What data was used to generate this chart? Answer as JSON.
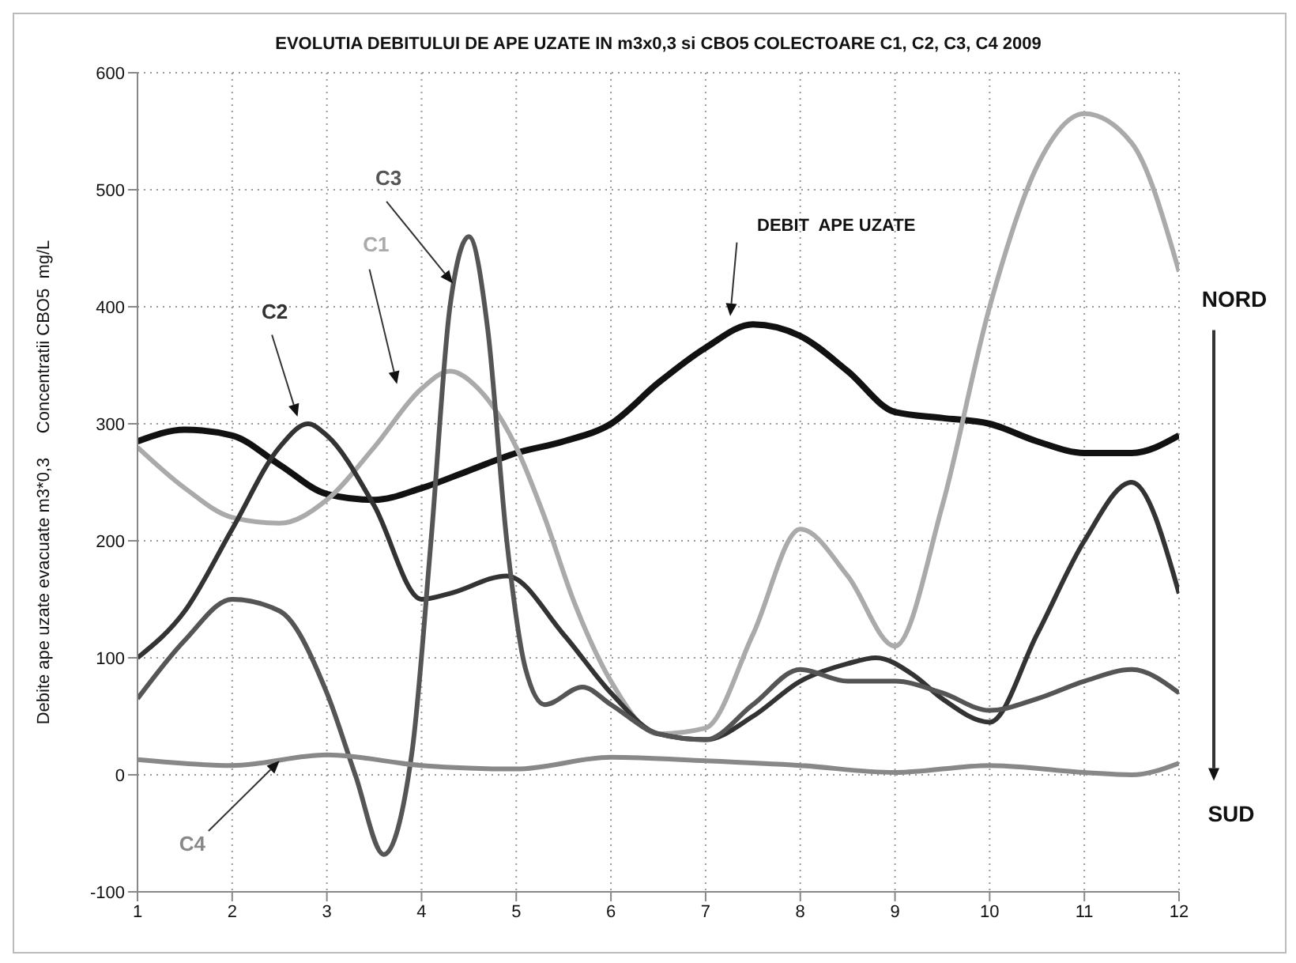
{
  "chart_data": {
    "type": "line",
    "title": "EVOLUTIA DEBITULUI DE APE UZATE IN m3x0,3 si CBO5 COLECTOARE C1, C2, C3, C4 2009",
    "ylabel": "Debite ape uzate evacuate m3*0,3     Concentratii CBO5  mg/L",
    "xlim": [
      1,
      12
    ],
    "xticks": [
      1,
      2,
      3,
      4,
      5,
      6,
      7,
      8,
      9,
      10,
      11,
      12
    ],
    "ylim": [
      -100,
      600
    ],
    "yticks": [
      -100,
      0,
      100,
      200,
      300,
      400,
      500,
      600
    ],
    "grid": true,
    "marker": "none",
    "line_style": "solid",
    "legend": false,
    "annotations": [
      "NORD",
      "SUD"
    ],
    "series": [
      {
        "name": "DEBIT  APE UZATE",
        "color": "#111111",
        "x": [
          1,
          1.5,
          2,
          2.5,
          3,
          3.5,
          4,
          4.5,
          5,
          5.5,
          6,
          6.5,
          7,
          7.5,
          8,
          8.5,
          9,
          9.5,
          10,
          10.5,
          11,
          11.5,
          12
        ],
        "values": [
          285,
          295,
          290,
          265,
          240,
          235,
          245,
          260,
          275,
          285,
          300,
          335,
          365,
          385,
          375,
          345,
          310,
          305,
          300,
          285,
          275,
          275,
          290
        ]
      },
      {
        "name": "C1",
        "color": "#aaaaaa",
        "x": [
          1,
          1.5,
          2,
          2.5,
          3,
          3.5,
          4,
          4.3,
          4.6,
          5,
          5.3,
          5.6,
          6,
          6.5,
          7,
          7.5,
          8,
          8.5,
          9,
          9.5,
          10,
          10.5,
          11,
          11.5,
          12
        ],
        "values": [
          280,
          245,
          220,
          215,
          235,
          280,
          330,
          345,
          330,
          280,
          220,
          150,
          80,
          35,
          40,
          120,
          210,
          170,
          110,
          230,
          400,
          520,
          565,
          540,
          430
        ]
      },
      {
        "name": "C2",
        "color": "#333333",
        "x": [
          1,
          1.5,
          2,
          2.5,
          2.8,
          3,
          3.5,
          4,
          4.3,
          4.9,
          5.5,
          6,
          6.5,
          7,
          7.5,
          8,
          8.5,
          8.8,
          9.2,
          9.5,
          10,
          10.5,
          11,
          11.5,
          12
        ],
        "values": [
          100,
          140,
          210,
          280,
          300,
          290,
          230,
          150,
          155,
          170,
          120,
          70,
          35,
          30,
          50,
          80,
          95,
          100,
          85,
          65,
          45,
          120,
          200,
          250,
          155
        ]
      },
      {
        "name": "C3",
        "color": "#555555",
        "x": [
          1,
          1.5,
          2,
          2.5,
          3,
          3.3,
          3.6,
          3.9,
          4.1,
          4.3,
          4.5,
          4.7,
          4.9,
          5.1,
          5.3,
          5.7,
          6,
          6.5,
          7,
          7.5,
          8,
          8.5,
          9,
          9.5,
          10,
          10.5,
          11,
          11.5,
          12
        ],
        "values": [
          65,
          115,
          150,
          140,
          70,
          0,
          -68,
          20,
          200,
          400,
          460,
          380,
          200,
          90,
          60,
          75,
          60,
          35,
          30,
          60,
          90,
          80,
          80,
          70,
          55,
          65,
          80,
          90,
          70
        ]
      },
      {
        "name": "C4",
        "color": "#888888",
        "x": [
          1,
          2,
          3,
          4,
          5,
          6,
          7,
          8,
          9,
          10,
          11,
          11.5,
          12
        ],
        "values": [
          13,
          8,
          17,
          8,
          5,
          15,
          12,
          8,
          2,
          8,
          2,
          0,
          10
        ]
      }
    ]
  }
}
